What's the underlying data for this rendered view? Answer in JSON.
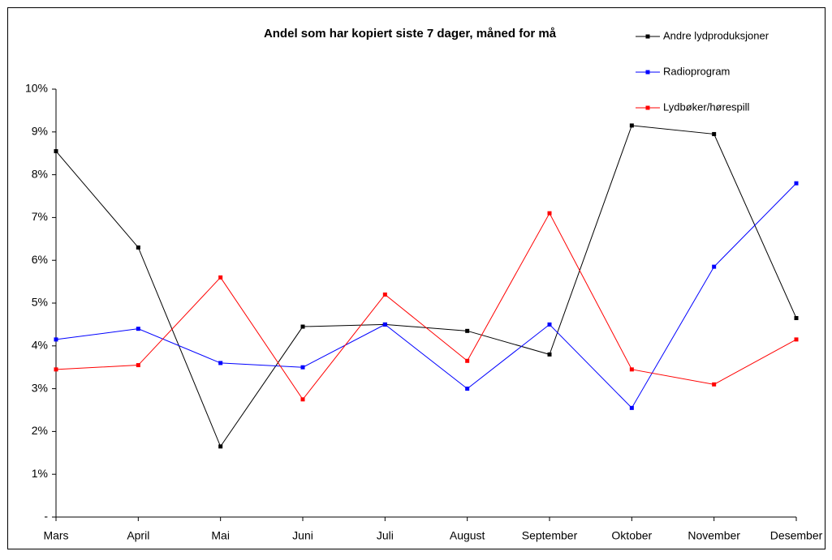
{
  "chart_data": {
    "type": "line",
    "title": "Andel som har kopiert siste 7 dager, måned for må",
    "categories": [
      "Mars",
      "April",
      "Mai",
      "Juni",
      "Juli",
      "August",
      "September",
      "Oktober",
      "November",
      "Desember"
    ],
    "series": [
      {
        "name": "Andre lydproduksjoner",
        "color": "#000000",
        "values": [
          8.55,
          6.3,
          1.65,
          4.45,
          4.5,
          4.35,
          3.8,
          9.15,
          8.95,
          4.65
        ]
      },
      {
        "name": "Radioprogram",
        "color": "#0000ff",
        "values": [
          4.15,
          4.4,
          3.6,
          3.5,
          4.5,
          3.0,
          4.5,
          2.55,
          5.85,
          7.8
        ]
      },
      {
        "name": "Lydbøker/hørespill",
        "color": "#ff0000",
        "values": [
          3.45,
          3.55,
          5.6,
          2.75,
          5.2,
          3.65,
          7.1,
          3.45,
          3.1,
          4.15
        ]
      }
    ],
    "ylim": [
      0,
      10
    ],
    "yticks": [
      {
        "value": 0,
        "label": "-"
      },
      {
        "value": 1,
        "label": "1%"
      },
      {
        "value": 2,
        "label": "2%"
      },
      {
        "value": 3,
        "label": "3%"
      },
      {
        "value": 4,
        "label": "4%"
      },
      {
        "value": 5,
        "label": "5%"
      },
      {
        "value": 6,
        "label": "6%"
      },
      {
        "value": 7,
        "label": "7%"
      },
      {
        "value": 8,
        "label": "8%"
      },
      {
        "value": 9,
        "label": "9%"
      },
      {
        "value": 10,
        "label": "10%"
      }
    ],
    "grid": false,
    "legend": "top-right"
  }
}
